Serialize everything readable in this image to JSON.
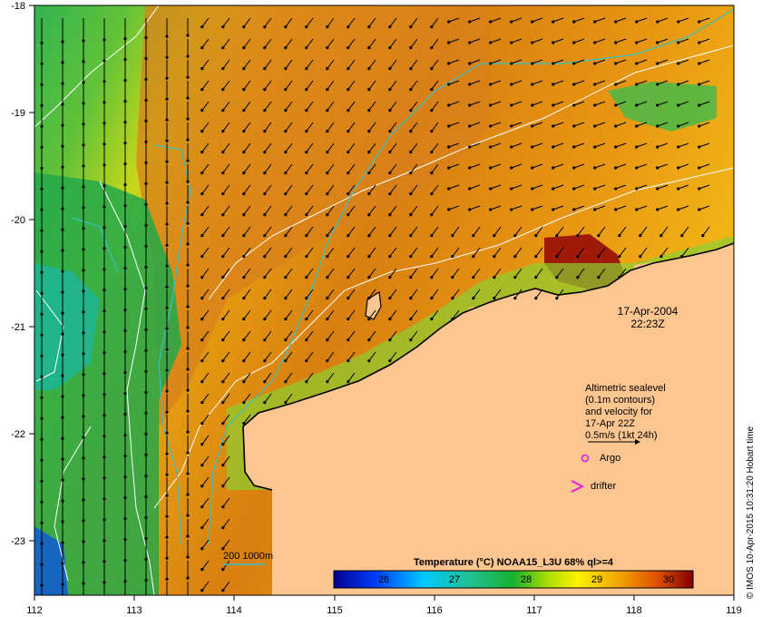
{
  "map": {
    "date": "17-Apr-2004",
    "time": "22:23Z",
    "legend_lines": [
      "Altimetric sealevel",
      "(0.1m contours)",
      "and velocity for",
      "17-Apr 22Z",
      "0.5m/s (1kt 24h)"
    ],
    "argo_label": "Argo",
    "drifter_label": "drifter",
    "isobath_label": "200  1000m",
    "colorbar_title": "Temperature (°C) NOAA15_L3U 68% ql>=4",
    "colorbar_ticks": [
      "26",
      "27",
      "28",
      "29",
      "30"
    ],
    "credit": "© IMOS 10-Apr-2015 10:31:20 Hobart time",
    "lon_ticks": [
      "112",
      "113",
      "114",
      "115",
      "116",
      "117",
      "118",
      "119"
    ],
    "lat_ticks": [
      "-18",
      "-19",
      "-20",
      "-21",
      "-22",
      "-23"
    ],
    "colors": {
      "land": "#fdc58f",
      "isobath": "#36c2c2",
      "argo": "#e020e0",
      "drifter": "#e020e0"
    }
  }
}
